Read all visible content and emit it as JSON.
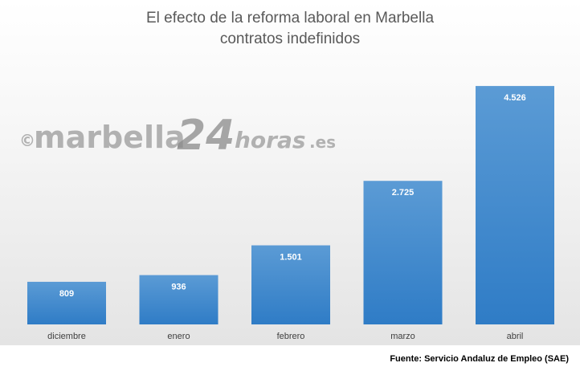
{
  "watermark": {
    "copyright": "©",
    "brand": "marbella",
    "number": "24",
    "suffix": "horas",
    "domain": ".es"
  },
  "source": "Fuente: Servicio Andaluz de Empleo (SAE)",
  "chart_data": {
    "type": "bar",
    "title": "El efecto de la reforma laboral en Marbella",
    "subtitle": "contratos indefinidos",
    "categories": [
      "diciembre",
      "enero",
      "febrero",
      "marzo",
      "abril"
    ],
    "values": [
      809,
      936,
      1501,
      2725,
      4526
    ],
    "value_labels": [
      "809",
      "936",
      "1.501",
      "2.725",
      "4.526"
    ],
    "xlabel": "",
    "ylabel": "",
    "ylim": [
      0,
      5000
    ],
    "grid": false,
    "legend": "none",
    "colors": {
      "bar_top": "#5b9bd5",
      "bar_bottom": "#2f7cc6",
      "label": "#ffffff"
    }
  }
}
